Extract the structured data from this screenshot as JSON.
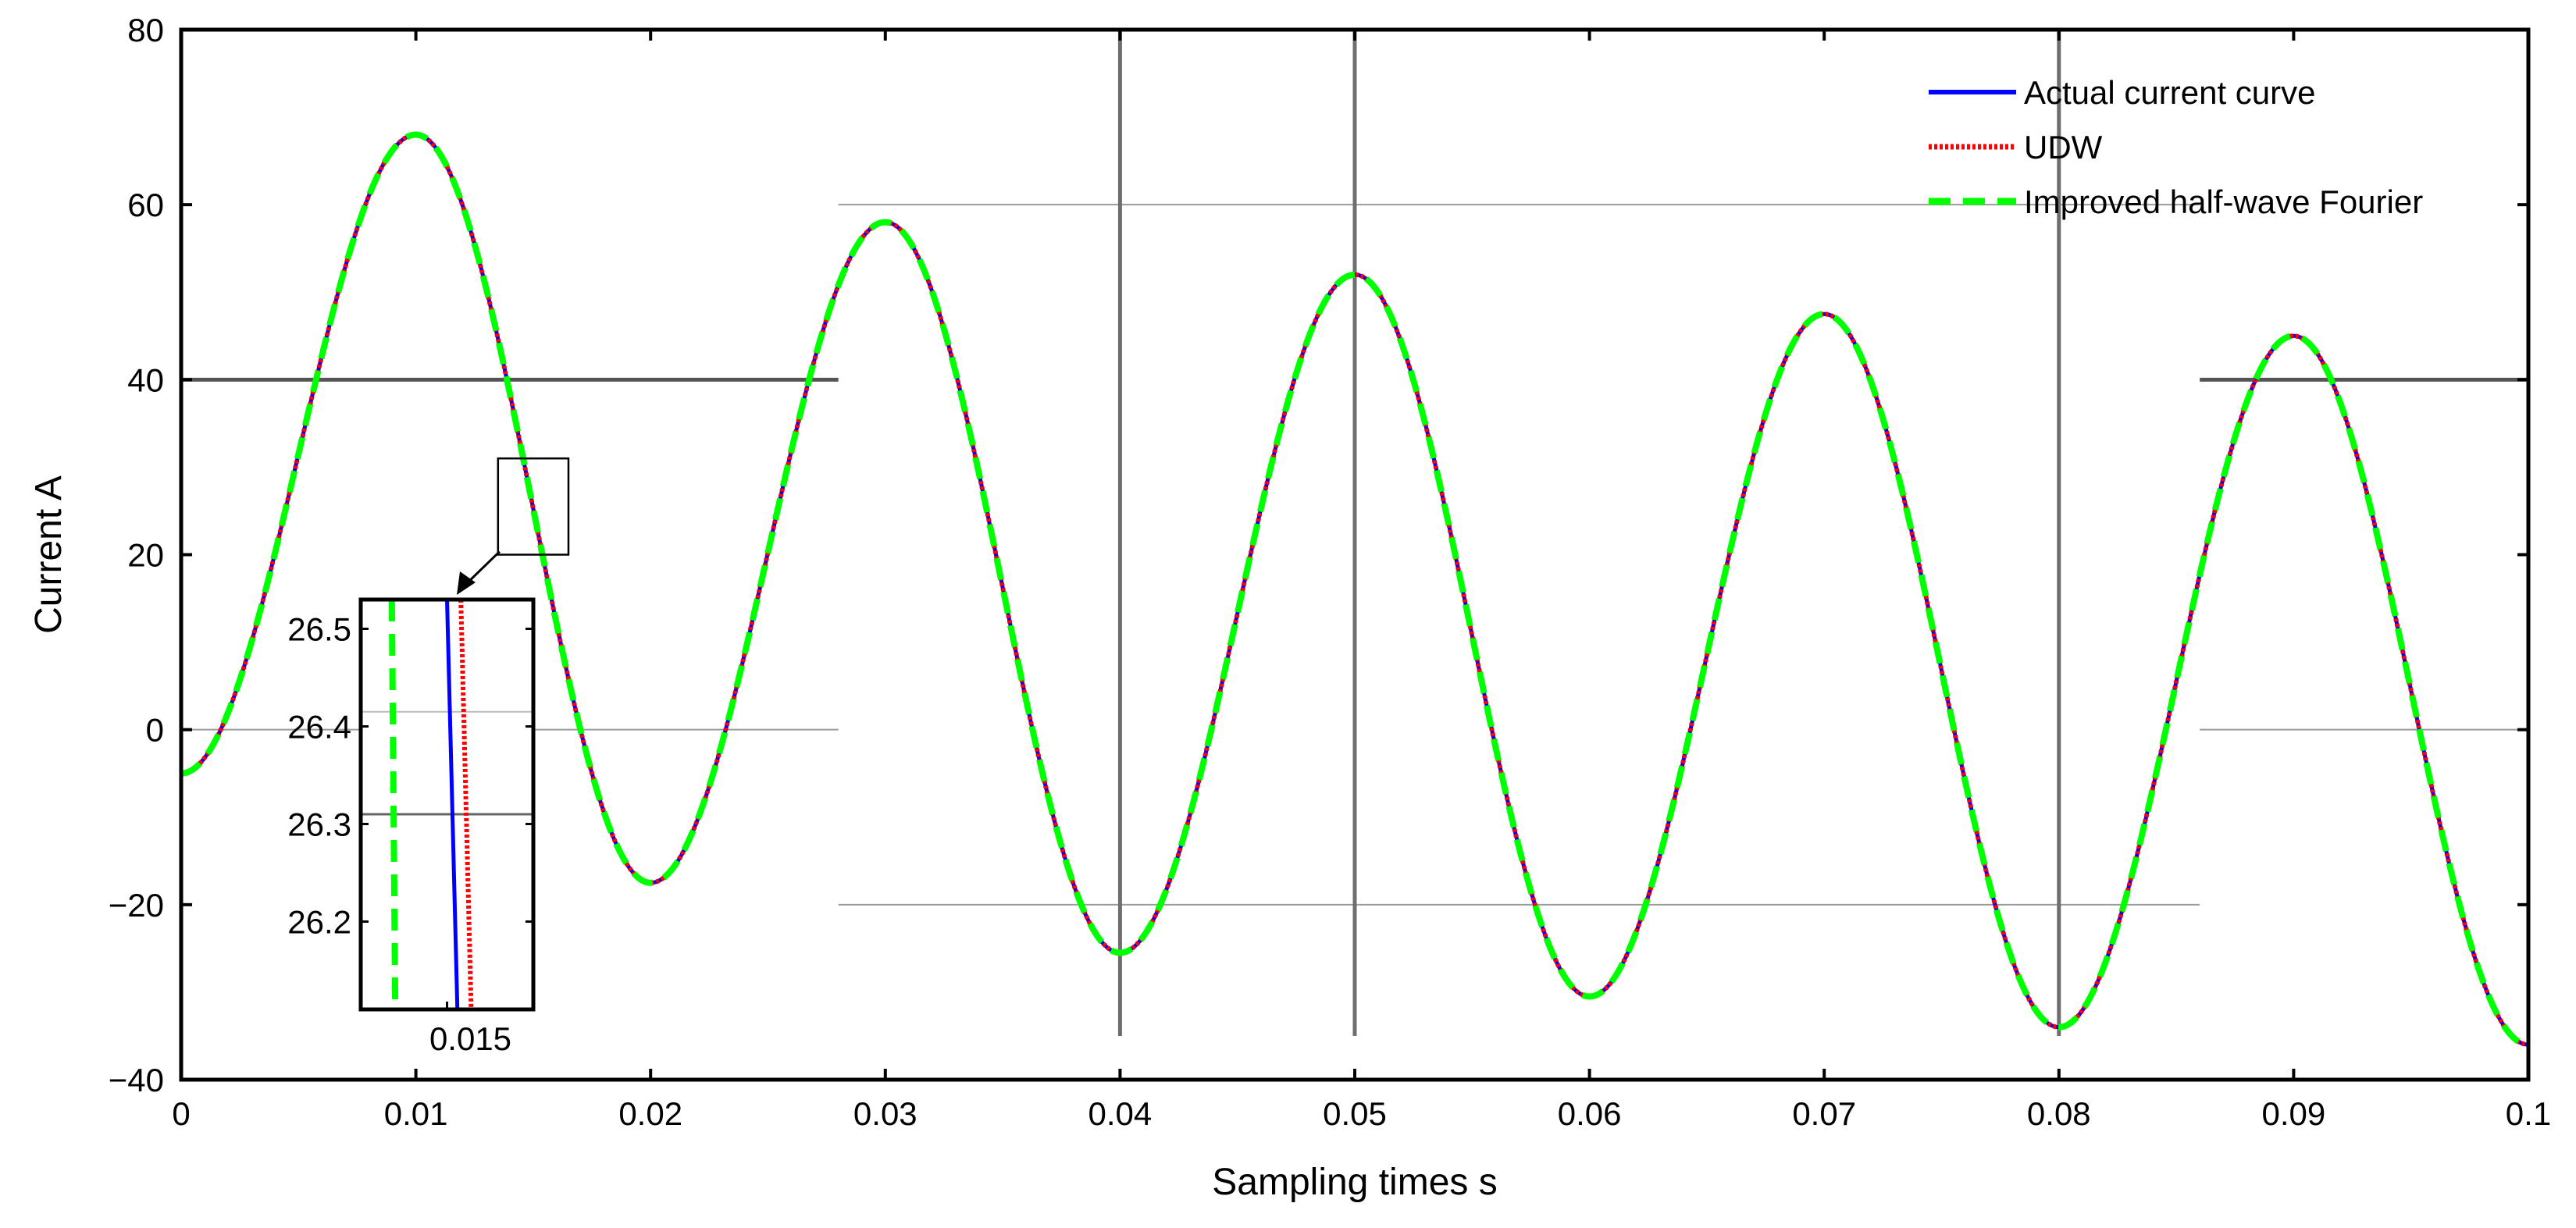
{
  "chart_data": {
    "type": "line",
    "xlabel": "Sampling times s",
    "ylabel": "Current A",
    "xlim": [
      0,
      0.1
    ],
    "ylim": [
      -40,
      80
    ],
    "xticks": [
      0,
      0.01,
      0.02,
      0.03,
      0.04,
      0.05,
      0.06,
      0.07,
      0.08,
      0.09,
      0.1
    ],
    "xtick_labels": [
      "0",
      "0.01",
      "0.02",
      "0.03",
      "0.04",
      "0.05",
      "0.06",
      "0.07",
      "0.08",
      "0.09",
      "0.1"
    ],
    "yticks": [
      -40,
      -20,
      0,
      20,
      40,
      60,
      80
    ],
    "ytick_labels": [
      "−40",
      "−20",
      "0",
      "20",
      "40",
      "60",
      "80"
    ],
    "grid": false,
    "legend_position": "top-right",
    "extrema": [
      {
        "x": 0.0,
        "y": -5.0
      },
      {
        "x": 0.01,
        "y": 68.0
      },
      {
        "x": 0.02,
        "y": -17.5
      },
      {
        "x": 0.03,
        "y": 58.0
      },
      {
        "x": 0.04,
        "y": -25.5
      },
      {
        "x": 0.05,
        "y": 52.0
      },
      {
        "x": 0.06,
        "y": -30.5
      },
      {
        "x": 0.07,
        "y": 47.5
      },
      {
        "x": 0.08,
        "y": -34.0
      },
      {
        "x": 0.09,
        "y": 45.0
      },
      {
        "x": 0.1,
        "y": -36.0
      }
    ],
    "series": [
      {
        "name": "Actual current curve",
        "color": "#0000ff",
        "style": "solid",
        "x_offset": 0
      },
      {
        "name": "UDW",
        "color": "#ff0000",
        "style": "dotted",
        "x_offset": 0
      },
      {
        "name": "Improved half-wave Fourier",
        "color": "#00ff00",
        "style": "dashed",
        "x_offset": 0
      }
    ],
    "reference_lines": {
      "horizontal": [
        {
          "y": 60,
          "x_range": [
            0.028,
            0.086
          ]
        },
        {
          "y": 40,
          "x_range": [
            0.0,
            0.028
          ]
        },
        {
          "y": 40,
          "x_range": [
            0.086,
            0.1
          ]
        },
        {
          "y": 0,
          "x_range": [
            0.0,
            0.028
          ]
        },
        {
          "y": 0,
          "x_range": [
            0.086,
            0.1
          ]
        },
        {
          "y": -20,
          "x_range": [
            0.028,
            0.086
          ]
        }
      ],
      "vertical": [
        {
          "x": 0.04,
          "y_range": [
            -35,
            80
          ]
        },
        {
          "x": 0.05,
          "y_range": [
            -35,
            80
          ]
        },
        {
          "x": 0.08,
          "y_range": [
            -35,
            80
          ]
        }
      ]
    },
    "zoom_box": {
      "x_range": [
        0.0135,
        0.0165
      ],
      "y_range": [
        20,
        31
      ]
    },
    "inset": {
      "xlim": [
        0.01475,
        0.01525
      ],
      "ylim": [
        26.11,
        26.53
      ],
      "xticks": [
        0.015
      ],
      "xtick_labels": [
        "0.015"
      ],
      "yticks": [
        26.2,
        26.3,
        26.4,
        26.5
      ],
      "ytick_labels": [
        "26.2",
        "26.3",
        "26.4",
        "26.5"
      ],
      "hlines": [
        26.31,
        26.415
      ],
      "series": [
        {
          "name": "Actual current curve",
          "color": "#0000ff",
          "style": "solid",
          "x_top": 0.015,
          "x_bottom": 0.01503
        },
        {
          "name": "UDW",
          "color": "#ff0000",
          "style": "dotted",
          "x_top": 0.01504,
          "x_bottom": 0.01507
        },
        {
          "name": "Improved half-wave Fourier",
          "color": "#00ff00",
          "style": "dashed",
          "x_top": 0.01484,
          "x_bottom": 0.01485
        }
      ]
    }
  }
}
